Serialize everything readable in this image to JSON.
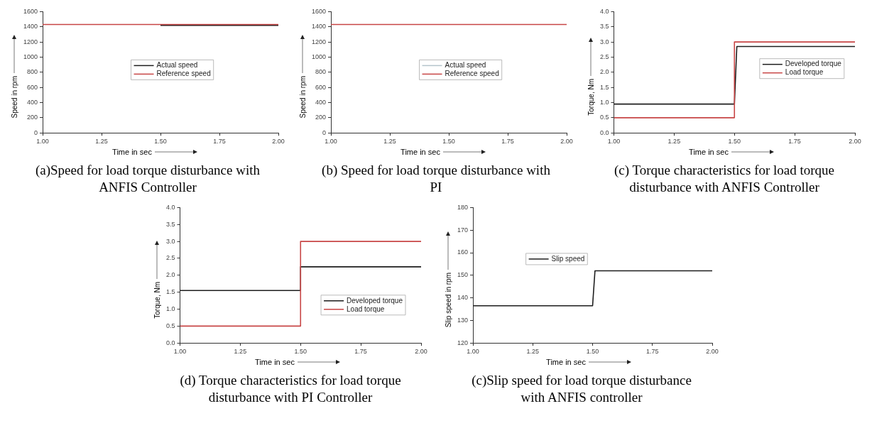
{
  "chart_data": [
    {
      "type": "line",
      "title": "(a)Speed for load torque disturbance with ANFIS Controller",
      "xlabel": "Time in sec",
      "ylabel": "Speed in rpm",
      "xlim": [
        1,
        2
      ],
      "xticks": [
        {
          "value": 1,
          "label": "1.00"
        },
        {
          "value": 1.25,
          "label": "1.25"
        },
        {
          "value": 1.5,
          "label": "1.50"
        },
        {
          "value": 1.75,
          "label": "1.75"
        },
        {
          "value": 2,
          "label": "2.00"
        }
      ],
      "ylim": [
        0,
        1600
      ],
      "yticks": [
        0,
        200,
        400,
        600,
        800,
        1000,
        1200,
        1400,
        1600
      ],
      "grid": false,
      "legend": "center",
      "series": [
        {
          "name": "Actual speed",
          "color": "#1e1e1e",
          "x": [
            1.5,
            2
          ],
          "values": [
            1420,
            1420
          ]
        },
        {
          "name": "Reference speed",
          "color": "#c84646",
          "x": [
            1,
            1.5,
            2
          ],
          "values": [
            1430,
            1430,
            1430
          ]
        }
      ]
    },
    {
      "type": "line",
      "title": "(b) Speed for load torque disturbance with PI",
      "xlabel": "Time in sec",
      "ylabel": "Speed in rpm",
      "xlim": [
        1,
        2
      ],
      "xticks": [
        {
          "value": 1,
          "label": "1.00"
        },
        {
          "value": 1.25,
          "label": "1.25"
        },
        {
          "value": 1.5,
          "label": "1.50"
        },
        {
          "value": 1.75,
          "label": "1.75"
        },
        {
          "value": 2,
          "label": "2.00"
        }
      ],
      "ylim": [
        0,
        1600
      ],
      "yticks": [
        0,
        200,
        400,
        600,
        800,
        1000,
        1200,
        1400,
        1600
      ],
      "grid": false,
      "legend": "center",
      "series": [
        {
          "name": "Actual speed",
          "color": "#b4c4cc"
        },
        {
          "name": "Reference speed",
          "color": "#c84646",
          "x": [
            1,
            1.5,
            2
          ],
          "values": [
            1430,
            1430,
            1430
          ]
        }
      ]
    },
    {
      "type": "line",
      "title": "(c) Torque characteristics for load torque disturbance with ANFIS Controller",
      "xlabel": "Time in sec",
      "ylabel": "Torque, Nm",
      "xlim": [
        1,
        2
      ],
      "xticks": [
        {
          "value": 1,
          "label": "1.00"
        },
        {
          "value": 1.25,
          "label": "1.25"
        },
        {
          "value": 1.5,
          "label": "1.50"
        },
        {
          "value": 1.75,
          "label": "1.75"
        },
        {
          "value": 2,
          "label": "2.00"
        }
      ],
      "ylim": [
        0,
        4
      ],
      "yticks": [
        {
          "value": 0,
          "label": "0.0"
        },
        {
          "value": 0.5,
          "label": "0.5"
        },
        {
          "value": 1,
          "label": "1.0"
        },
        {
          "value": 1.5,
          "label": "1.5"
        },
        {
          "value": 2,
          "label": "2.0"
        },
        {
          "value": 2.5,
          "label": "2.5"
        },
        {
          "value": 3,
          "label": "3.0"
        },
        {
          "value": 3.5,
          "label": "3.5"
        },
        {
          "value": 4,
          "label": "4.0"
        }
      ],
      "grid": false,
      "legend": "right",
      "series": [
        {
          "name": "Developed torque",
          "color": "#1e1e1e",
          "x": [
            1,
            1.5,
            1.51,
            2
          ],
          "values": [
            0.95,
            0.95,
            2.85,
            2.85
          ]
        },
        {
          "name": "Load torque",
          "color": "#c84646",
          "x": [
            1,
            1.5,
            1.5,
            2
          ],
          "values": [
            0.5,
            0.5,
            3,
            3
          ]
        }
      ]
    },
    {
      "type": "line",
      "title": "(d) Torque characteristics for load torque disturbance with PI Controller",
      "xlabel": "Time in sec",
      "ylabel": "Torque, Nm",
      "xlim": [
        1,
        2
      ],
      "xticks": [
        {
          "value": 1,
          "label": "1.00"
        },
        {
          "value": 1.25,
          "label": "1.25"
        },
        {
          "value": 1.5,
          "label": "1.50"
        },
        {
          "value": 1.75,
          "label": "1.75"
        },
        {
          "value": 2,
          "label": "2.00"
        }
      ],
      "ylim": [
        0,
        4
      ],
      "yticks": [
        {
          "value": 0,
          "label": "0.0"
        },
        {
          "value": 0.5,
          "label": "0.5"
        },
        {
          "value": 1,
          "label": "1.0"
        },
        {
          "value": 1.5,
          "label": "1.5"
        },
        {
          "value": 2,
          "label": "2.0"
        },
        {
          "value": 2.5,
          "label": "2.5"
        },
        {
          "value": 3,
          "label": "3.0"
        },
        {
          "value": 3.5,
          "label": "3.5"
        },
        {
          "value": 4,
          "label": "4.0"
        }
      ],
      "grid": false,
      "legend": "bottom right",
      "series": [
        {
          "name": "Developed torque",
          "color": "#1e1e1e",
          "x": [
            1,
            1.5,
            1.5,
            2
          ],
          "values": [
            1.55,
            1.55,
            2.25,
            2.25
          ]
        },
        {
          "name": "Load torque",
          "color": "#c84646",
          "x": [
            1,
            1.5,
            1.5,
            2
          ],
          "values": [
            0.5,
            0.5,
            3,
            3
          ]
        }
      ]
    },
    {
      "type": "line",
      "title": "(c)Slip speed for load torque disturbance with ANFIS controller",
      "xlabel": "Time in sec",
      "ylabel": "Slip speed in rpm",
      "xlim": [
        1,
        2
      ],
      "xticks": [
        {
          "value": 1,
          "label": "1.00"
        },
        {
          "value": 1.25,
          "label": "1.25"
        },
        {
          "value": 1.5,
          "label": "1.50"
        },
        {
          "value": 1.75,
          "label": "1.75"
        },
        {
          "value": 2,
          "label": "2.00"
        }
      ],
      "ylim": [
        120,
        180
      ],
      "yticks": [
        120,
        130,
        140,
        150,
        160,
        170,
        180
      ],
      "grid": false,
      "legend": "top left",
      "series": [
        {
          "name": "Slip speed",
          "color": "#1e1e1e",
          "x": [
            1,
            1.5,
            1.51,
            2
          ],
          "values": [
            136.5,
            136.5,
            152,
            152
          ]
        }
      ]
    }
  ]
}
